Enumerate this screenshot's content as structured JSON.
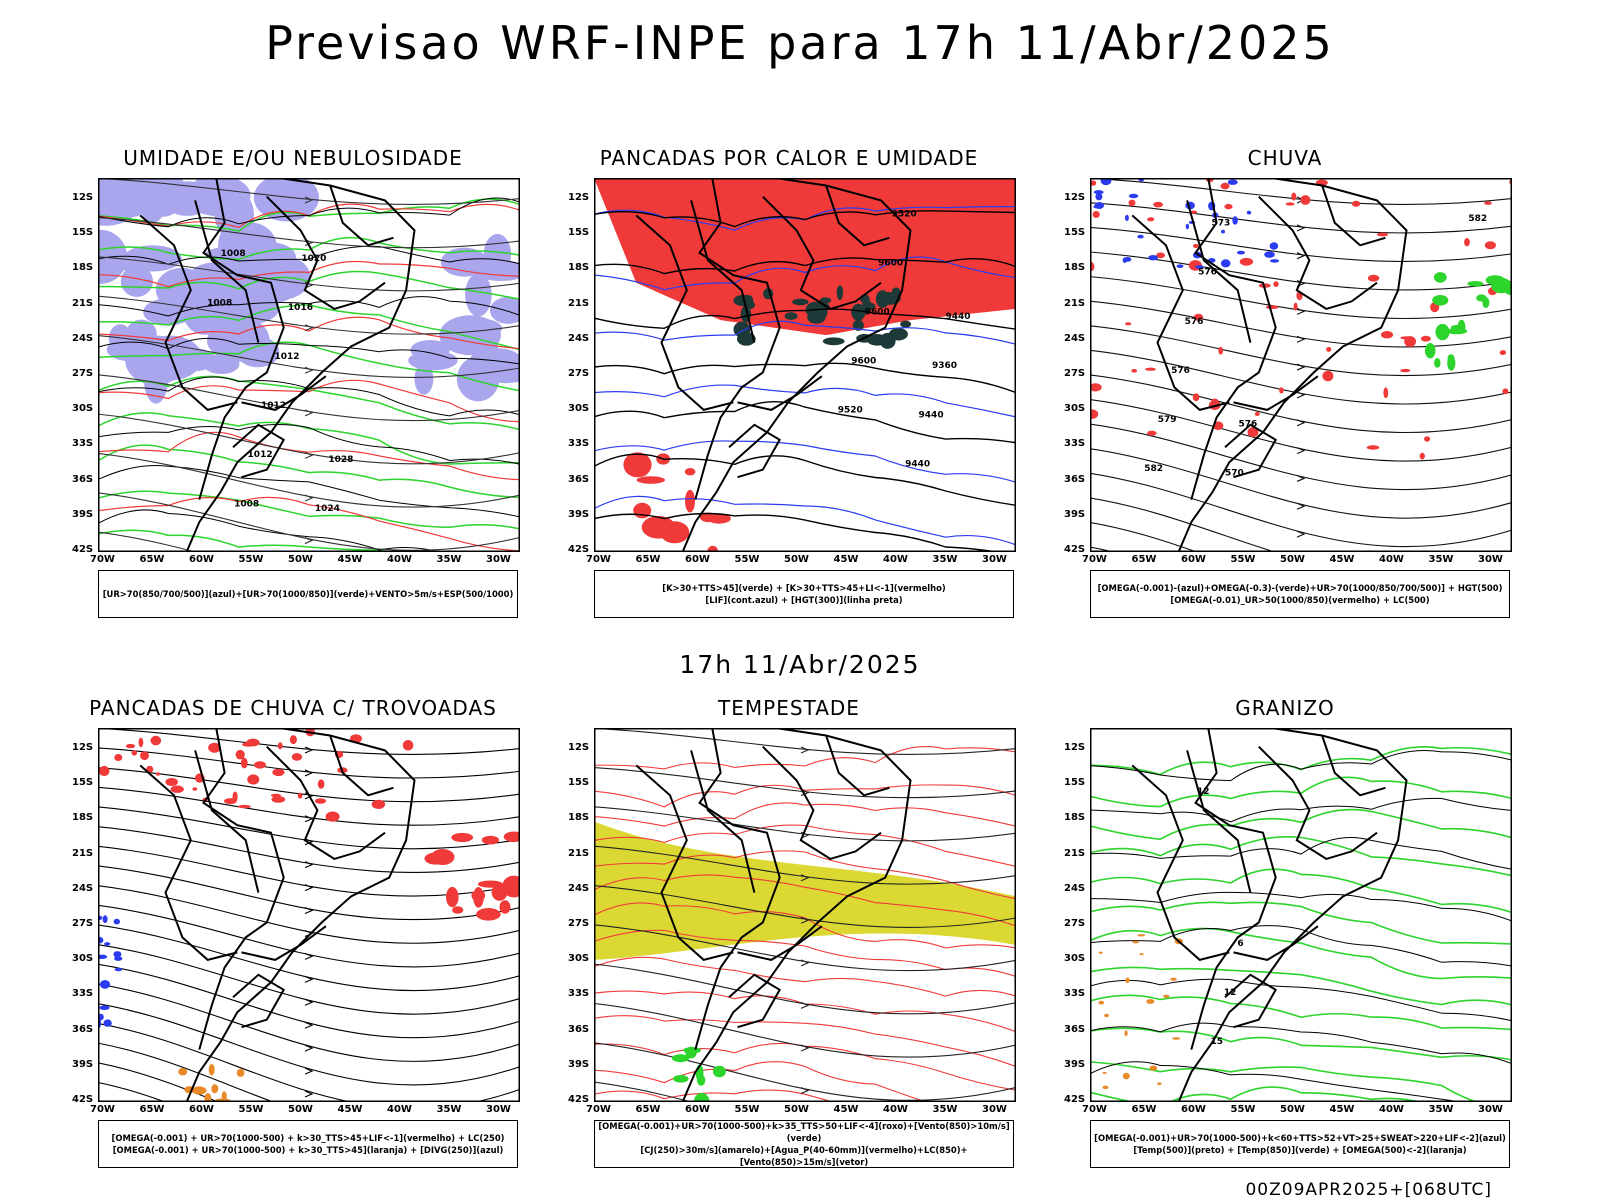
{
  "header": {
    "title": "Previsao WRF-INPE  para 17h 11/Abr/2025",
    "mid_time": "17h 11/Abr/2025",
    "footer": "00Z09APR2025+[068UTC]"
  },
  "axes": {
    "lat_labels": [
      "12S",
      "15S",
      "18S",
      "21S",
      "24S",
      "27S",
      "30S",
      "33S",
      "36S",
      "39S",
      "42S"
    ],
    "lon_labels": [
      "70W",
      "65W",
      "60W",
      "55W",
      "50W",
      "45W",
      "40W",
      "35W",
      "30W"
    ]
  },
  "colors": {
    "red": "#f03a3a",
    "green": "#2cd42c",
    "blue": "#2b3cf0",
    "lavender": "#a9a6ee",
    "darkteal": "#1e3a38",
    "yellow": "#dcd833",
    "orange": "#e98a2a"
  },
  "panels": [
    {
      "title": "UMIDADE E/OU NEBULOSIDADE",
      "legend": [
        "[UR>70(850/700/500)](azul)+[UR>70(1000/850)](verde)+VENTO>5m/s+ESP(500/1000)"
      ],
      "contour_labels": [
        "1008",
        "1008",
        "1008",
        "1012",
        "1012",
        "1012",
        "1016",
        "1020",
        "1024",
        "1028"
      ]
    },
    {
      "title": "PANCADAS POR CALOR E UMIDADE",
      "legend": [
        "[K>30+TTS>45](verde) + [K>30+TTS>45+LI<-1](vermelho)",
        "[LIF](cont.azul) + [HGT(300)](linha preta)"
      ],
      "contour_labels": [
        "9520",
        "9600",
        "9600",
        "9600",
        "9520",
        "9440",
        "9440",
        "9360",
        "9440"
      ]
    },
    {
      "title": "CHUVA",
      "legend": [
        "[OMEGA(-0.001)-(azul)+OMEGA(-0.3)-(verde)+UR>70(1000/850/700/500)] + HGT(500)",
        "[OMEGA(-0.01)_UR>50(1000/850)(vermelho) + LC(500)"
      ],
      "contour_labels": [
        "582",
        "582",
        "579",
        "576",
        "576",
        "576",
        "573",
        "570",
        "576"
      ]
    },
    {
      "title": "PANCADAS DE CHUVA C/ TROVOADAS",
      "legend": [
        "[OMEGA(-0.001) + UR>70(1000-500) + k>30_TTS>45+LIF<-1](vermelho) + LC(250)",
        "[OMEGA(-0.001) + UR>70(1000-500) + k>30_TTS>45](laranja) + [DIVG(250)](azul)"
      ],
      "contour_labels": []
    },
    {
      "title": "TEMPESTADE",
      "legend": [
        "[OMEGA(-0.001)+UR>70(1000-500)+k>35_TTS>50+LIF<-4](roxo)+[Vento(850)>10m/s](verde)",
        "[CJ(250)>30m/s](amarelo)+[Agua_P(40-60mm)](vermelho)+LC(850)+[Vento(850)>15m/s](vetor)"
      ],
      "contour_labels": []
    },
    {
      "title": "GRANIZO",
      "legend": [
        "[OMEGA(-0.001)+UR>70(1000-500)+k<60+TTS>52+VT>25+SWEAT>220+LIF<-2](azul)",
        "[Temp(500)](preto) + [Temp(850)](verde) + [OMEGA(500)<-2](laranja)"
      ],
      "contour_labels": [
        "12",
        "15",
        "12",
        "6"
      ]
    }
  ]
}
